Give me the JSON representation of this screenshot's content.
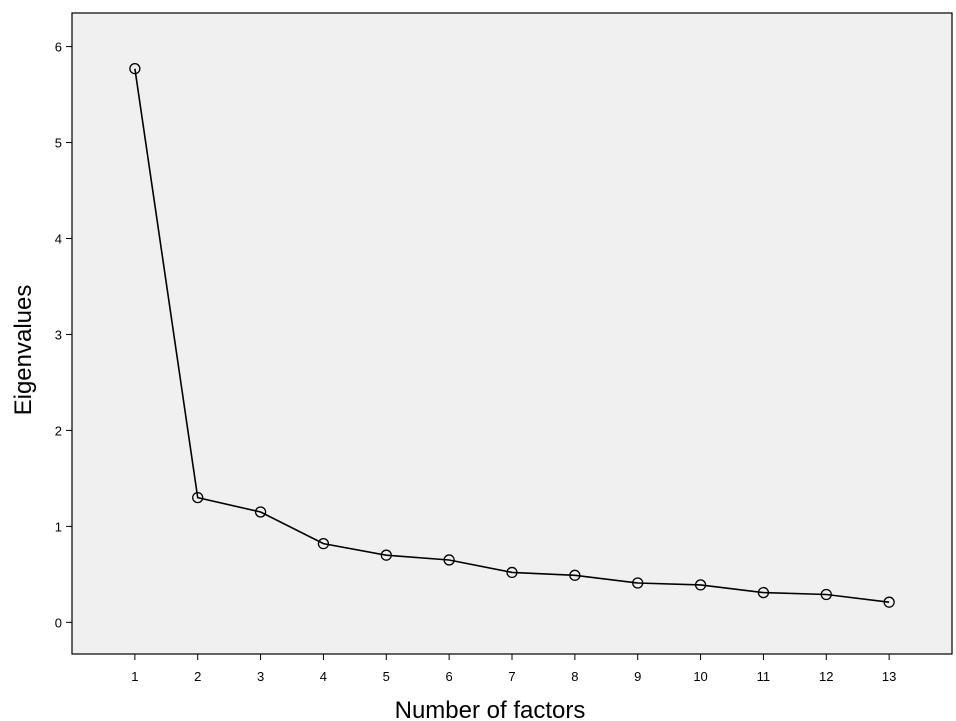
{
  "chart_data": {
    "type": "line",
    "title": "",
    "xlabel": "Number of factors",
    "ylabel": "Eigenvalues",
    "x": [
      1,
      2,
      3,
      4,
      5,
      6,
      7,
      8,
      9,
      10,
      11,
      12,
      13
    ],
    "values": [
      5.77,
      1.3,
      1.15,
      0.82,
      0.7,
      0.65,
      0.52,
      0.49,
      0.41,
      0.39,
      0.31,
      0.29,
      0.21
    ],
    "x_ticks": [
      "1",
      "2",
      "3",
      "4",
      "5",
      "6",
      "7",
      "8",
      "9",
      "10",
      "11",
      "12",
      "13"
    ],
    "y_ticks": [
      "0",
      "1",
      "2",
      "3",
      "4",
      "5",
      "6"
    ],
    "xlim": [
      0,
      14
    ],
    "ylim": [
      -0.33,
      6.35
    ],
    "grid": false,
    "legend": "none",
    "marker": "open-circle",
    "colors": {
      "plot_background": "#f0f0f0",
      "line": "#000000",
      "frame": "#000000"
    }
  }
}
